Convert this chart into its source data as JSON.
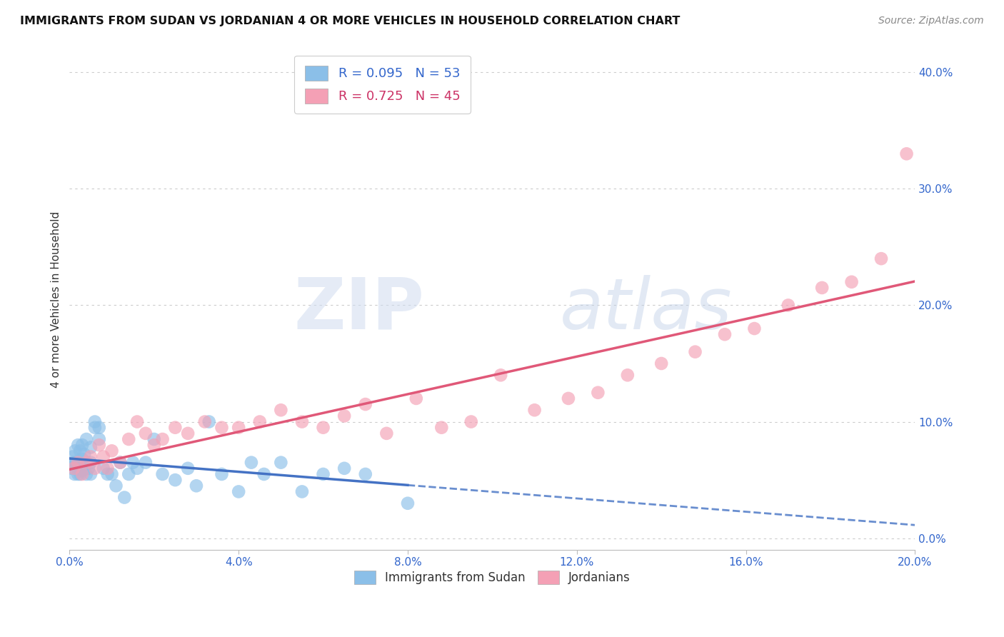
{
  "title": "IMMIGRANTS FROM SUDAN VS JORDANIAN 4 OR MORE VEHICLES IN HOUSEHOLD CORRELATION CHART",
  "source": "Source: ZipAtlas.com",
  "ylabel": "4 or more Vehicles in Household",
  "legend_label_1": "Immigrants from Sudan",
  "legend_label_2": "Jordanians",
  "R1": 0.095,
  "N1": 53,
  "R2": 0.725,
  "N2": 45,
  "color1": "#8BBFE8",
  "color2": "#F4A0B5",
  "line_color1": "#4472C4",
  "line_color2": "#E05878",
  "xlim": [
    0.0,
    0.2
  ],
  "ylim": [
    -0.01,
    0.42
  ],
  "xticks": [
    0.0,
    0.04,
    0.08,
    0.12,
    0.16,
    0.2
  ],
  "yticks_right": [
    0.0,
    0.1,
    0.2,
    0.3,
    0.4
  ],
  "background_color": "#FFFFFF",
  "watermark": "ZIPatlas",
  "sudan_x": [
    0.0005,
    0.0008,
    0.001,
    0.0012,
    0.0013,
    0.0015,
    0.0018,
    0.002,
    0.002,
    0.0022,
    0.0025,
    0.0025,
    0.003,
    0.003,
    0.003,
    0.0035,
    0.0035,
    0.004,
    0.004,
    0.0045,
    0.005,
    0.005,
    0.005,
    0.006,
    0.006,
    0.007,
    0.007,
    0.008,
    0.009,
    0.01,
    0.011,
    0.012,
    0.013,
    0.014,
    0.015,
    0.016,
    0.018,
    0.02,
    0.022,
    0.025,
    0.028,
    0.03,
    0.033,
    0.036,
    0.04,
    0.043,
    0.046,
    0.05,
    0.055,
    0.06,
    0.065,
    0.07,
    0.08
  ],
  "sudan_y": [
    0.06,
    0.07,
    0.065,
    0.055,
    0.075,
    0.065,
    0.06,
    0.055,
    0.08,
    0.065,
    0.075,
    0.055,
    0.058,
    0.068,
    0.08,
    0.06,
    0.072,
    0.055,
    0.085,
    0.06,
    0.065,
    0.078,
    0.055,
    0.095,
    0.1,
    0.095,
    0.085,
    0.06,
    0.055,
    0.055,
    0.045,
    0.065,
    0.035,
    0.055,
    0.065,
    0.06,
    0.065,
    0.085,
    0.055,
    0.05,
    0.06,
    0.045,
    0.1,
    0.055,
    0.04,
    0.065,
    0.055,
    0.065,
    0.04,
    0.055,
    0.06,
    0.055,
    0.03
  ],
  "jordan_x": [
    0.001,
    0.002,
    0.003,
    0.004,
    0.005,
    0.006,
    0.007,
    0.008,
    0.009,
    0.01,
    0.012,
    0.014,
    0.016,
    0.018,
    0.02,
    0.022,
    0.025,
    0.028,
    0.032,
    0.036,
    0.04,
    0.045,
    0.05,
    0.055,
    0.06,
    0.065,
    0.07,
    0.075,
    0.082,
    0.088,
    0.095,
    0.102,
    0.11,
    0.118,
    0.125,
    0.132,
    0.14,
    0.148,
    0.155,
    0.162,
    0.17,
    0.178,
    0.185,
    0.192,
    0.198
  ],
  "jordan_y": [
    0.06,
    0.065,
    0.055,
    0.065,
    0.07,
    0.06,
    0.08,
    0.07,
    0.06,
    0.075,
    0.065,
    0.085,
    0.1,
    0.09,
    0.08,
    0.085,
    0.095,
    0.09,
    0.1,
    0.095,
    0.095,
    0.1,
    0.11,
    0.1,
    0.095,
    0.105,
    0.115,
    0.09,
    0.12,
    0.095,
    0.1,
    0.14,
    0.11,
    0.12,
    0.125,
    0.14,
    0.15,
    0.16,
    0.175,
    0.18,
    0.2,
    0.215,
    0.22,
    0.24,
    0.33
  ]
}
